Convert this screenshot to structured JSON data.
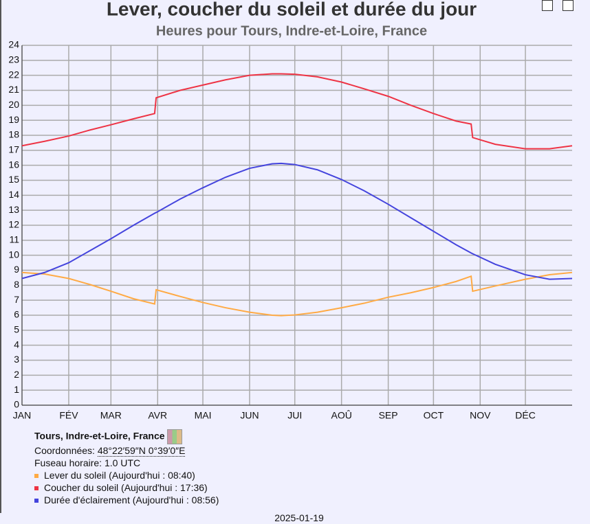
{
  "chart_data": {
    "type": "line",
    "title": "Lever, coucher du soleil et durée du jour",
    "subtitle": "Heures pour Tours, Indre-et-Loire, France",
    "x": [
      0,
      15,
      31,
      45,
      59,
      74,
      88,
      89,
      105,
      120,
      135,
      151,
      166,
      172,
      181,
      196,
      212,
      227,
      243,
      258,
      273,
      288,
      298,
      299,
      314,
      334,
      350,
      365
    ],
    "series": [
      {
        "name": "Lever du soleil (Aujourd'hui : 08:40)",
        "color": "#ffaa44",
        "values": [
          8.85,
          8.75,
          8.45,
          8.05,
          7.6,
          7.1,
          6.75,
          7.7,
          7.25,
          6.85,
          6.5,
          6.2,
          6.0,
          5.97,
          6.02,
          6.2,
          6.5,
          6.8,
          7.2,
          7.5,
          7.85,
          8.25,
          8.6,
          7.6,
          7.95,
          8.4,
          8.7,
          8.85
        ]
      },
      {
        "name": "Coucher du soleil (Aujourd'hui : 17:36)",
        "color": "#ee3344",
        "values": [
          17.3,
          17.6,
          17.95,
          18.35,
          18.7,
          19.1,
          19.45,
          20.5,
          21.0,
          21.35,
          21.7,
          22.0,
          22.1,
          22.1,
          22.07,
          21.9,
          21.55,
          21.1,
          20.6,
          20.0,
          19.45,
          18.95,
          18.75,
          17.85,
          17.4,
          17.1,
          17.1,
          17.3
        ]
      },
      {
        "name": "Durée d'éclairement (Aujourd'hui : 08:56)",
        "color": "#4444dd",
        "values": [
          8.45,
          8.85,
          9.5,
          10.3,
          11.1,
          12.0,
          12.8,
          12.85,
          13.75,
          14.5,
          15.2,
          15.8,
          16.1,
          16.13,
          16.05,
          15.7,
          15.05,
          14.3,
          13.4,
          12.5,
          11.6,
          10.7,
          10.15,
          10.1,
          9.4,
          8.7,
          8.4,
          8.45
        ]
      }
    ],
    "xlim": [
      0,
      365
    ],
    "xticks": [
      {
        "value": 0,
        "label": "JAN"
      },
      {
        "value": 31,
        "label": "FÉV"
      },
      {
        "value": 59,
        "label": "MAR"
      },
      {
        "value": 90,
        "label": "AVR"
      },
      {
        "value": 120,
        "label": "MAI"
      },
      {
        "value": 151,
        "label": "JUN"
      },
      {
        "value": 181,
        "label": "JUI"
      },
      {
        "value": 212,
        "label": "AOÛ"
      },
      {
        "value": 243,
        "label": "SEP"
      },
      {
        "value": 273,
        "label": "OCT"
      },
      {
        "value": 304,
        "label": "NOV"
      },
      {
        "value": 334,
        "label": "DÉC"
      }
    ],
    "ylim": [
      0,
      24
    ],
    "yticks": [
      0,
      1,
      2,
      3,
      4,
      5,
      6,
      7,
      8,
      9,
      10,
      11,
      12,
      13,
      14,
      15,
      16,
      17,
      18,
      19,
      20,
      21,
      22,
      23,
      24
    ],
    "grid": true
  },
  "info": {
    "location": "Tours, Indre-et-Loire, France",
    "coords_label": "Coordonnées:",
    "coords": "48°22′59″N 0°39′0″E",
    "timezone": "Fuseau horaire: 1.0 UTC",
    "date": "2025-01-19"
  }
}
